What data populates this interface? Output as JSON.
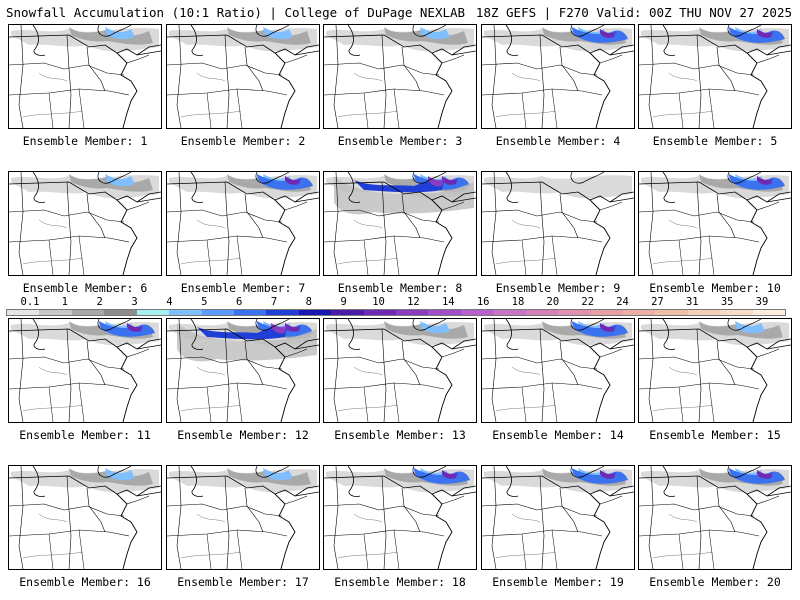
{
  "header": {
    "left": "Snowfall Accumulation (10:1 Ratio) | College of DuPage NEXLAB",
    "right": "18Z GEFS | F270 Valid: 00Z THU NOV 27 2025"
  },
  "members": [
    {
      "label": "Ensemble Member: 1",
      "intensity": 1
    },
    {
      "label": "Ensemble Member: 2",
      "intensity": 1
    },
    {
      "label": "Ensemble Member: 3",
      "intensity": 1
    },
    {
      "label": "Ensemble Member: 4",
      "intensity": 2
    },
    {
      "label": "Ensemble Member: 5",
      "intensity": 2
    },
    {
      "label": "Ensemble Member: 6",
      "intensity": 1
    },
    {
      "label": "Ensemble Member: 7",
      "intensity": 2
    },
    {
      "label": "Ensemble Member: 8",
      "intensity": 3
    },
    {
      "label": "Ensemble Member: 9",
      "intensity": 0
    },
    {
      "label": "Ensemble Member: 10",
      "intensity": 2
    },
    {
      "label": "Ensemble Member: 11",
      "intensity": 2
    },
    {
      "label": "Ensemble Member: 12",
      "intensity": 3
    },
    {
      "label": "Ensemble Member: 13",
      "intensity": 1
    },
    {
      "label": "Ensemble Member: 14",
      "intensity": 2
    },
    {
      "label": "Ensemble Member: 15",
      "intensity": 1
    },
    {
      "label": "Ensemble Member: 16",
      "intensity": 1
    },
    {
      "label": "Ensemble Member: 17",
      "intensity": 1
    },
    {
      "label": "Ensemble Member: 18",
      "intensity": 2
    },
    {
      "label": "Ensemble Member: 19",
      "intensity": 2
    },
    {
      "label": "Ensemble Member: 20",
      "intensity": 2
    }
  ],
  "colorbar": {
    "ticks": [
      "0.1",
      "1",
      "2",
      "3",
      "4",
      "5",
      "6",
      "7",
      "8",
      "9",
      "10",
      "12",
      "14",
      "16",
      "18",
      "20",
      "22",
      "24",
      "27",
      "31",
      "35",
      "39"
    ],
    "colors": [
      "#e6e6e6",
      "#c8c8c8",
      "#a9a9a9",
      "#8c8c8c",
      "#a6f0f0",
      "#7fbfff",
      "#5a9cff",
      "#3a72f0",
      "#1f3fd6",
      "#1a16b0",
      "#4a1aa8",
      "#6e2ab4",
      "#8a3cc0",
      "#a24ec8",
      "#b860cc",
      "#c874c4",
      "#d681b8",
      "#e090b0",
      "#e8a0a8",
      "#eab0a4",
      "#efc0a8",
      "#f4d0b8",
      "#f8dec8",
      "#fbeedc"
    ]
  }
}
